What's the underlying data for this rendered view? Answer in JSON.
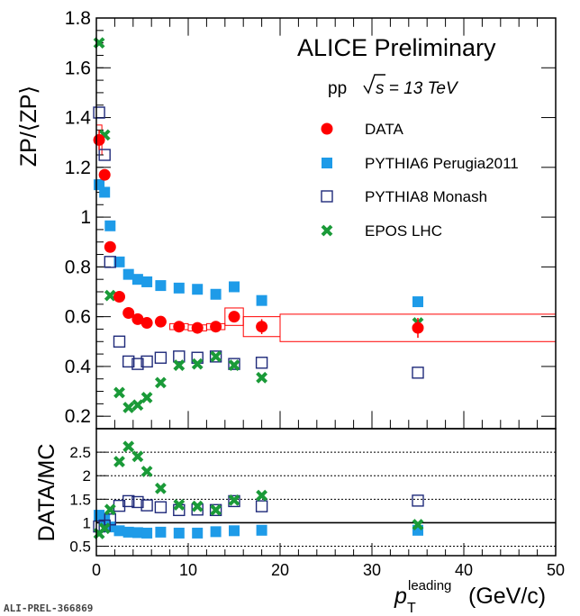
{
  "chart_data": [
    {
      "type": "scatter",
      "panel": "top",
      "title": "ALICE Preliminary",
      "subtitle_prefix": "pp ",
      "subtitle_energy": "s = 13 TeV",
      "ylabel": "ZP/⟨ZP⟩",
      "xlim": [
        0,
        50
      ],
      "ylim": [
        0.15,
        1.8
      ],
      "xticks": [
        "0",
        "10",
        "20",
        "30",
        "40",
        "50"
      ],
      "yticks": [
        "0.2",
        "0.4",
        "0.6",
        "0.8",
        "1",
        "1.2",
        "1.4",
        "1.6",
        "1.8"
      ],
      "legend_position": "top-right",
      "series": [
        {
          "name": "DATA",
          "marker": "circle",
          "color": "#ff0000",
          "x": [
            0.3,
            0.9,
            1.5,
            2.5,
            3.5,
            4.5,
            5.5,
            7,
            9,
            11,
            13,
            15,
            18,
            35
          ],
          "y": [
            1.31,
            1.17,
            0.88,
            0.68,
            0.615,
            0.59,
            0.575,
            0.58,
            0.56,
            0.555,
            0.56,
            0.6,
            0.56,
            0.555
          ],
          "yerr": [
            0.04,
            0.02,
            0.01,
            0.01,
            0.01,
            0.01,
            0.01,
            0.01,
            0.01,
            0.01,
            0.01,
            0.02,
            0.03,
            0.04
          ],
          "syst_width": [
            0.6,
            0.6,
            0.6,
            0.6,
            0.6,
            0.6,
            0.6,
            0.6,
            2,
            2,
            2,
            2,
            4,
            30
          ],
          "syst_half_height": [
            0.06,
            0.015,
            0.015,
            0.01,
            0.01,
            0.01,
            0.01,
            0.01,
            0.012,
            0.012,
            0.012,
            0.035,
            0.04,
            0.055
          ]
        },
        {
          "name": "PYTHIA6 Perugia2011",
          "marker": "square-filled",
          "color": "#1e9be8",
          "x": [
            0.3,
            0.9,
            1.5,
            2.5,
            3.5,
            4.5,
            5.5,
            7,
            9,
            11,
            13,
            15,
            18,
            35
          ],
          "y": [
            1.13,
            1.1,
            0.965,
            0.82,
            0.77,
            0.75,
            0.74,
            0.725,
            0.715,
            0.71,
            0.69,
            0.72,
            0.665,
            0.66
          ]
        },
        {
          "name": "PYTHIA8 Monash",
          "marker": "square-open",
          "color": "#1f2a7a",
          "x": [
            0.3,
            0.9,
            1.5,
            2.5,
            3.5,
            4.5,
            5.5,
            7,
            9,
            11,
            13,
            15,
            18,
            35
          ],
          "y": [
            1.42,
            1.25,
            0.82,
            0.5,
            0.42,
            0.41,
            0.42,
            0.435,
            0.44,
            0.435,
            0.44,
            0.41,
            0.415,
            0.375
          ]
        },
        {
          "name": "EPOS LHC",
          "marker": "x",
          "color": "#1a9a38",
          "x": [
            0.3,
            0.9,
            1.5,
            2.5,
            3.5,
            4.5,
            5.5,
            7,
            9,
            11,
            13,
            15,
            18,
            35
          ],
          "y": [
            1.7,
            1.33,
            0.685,
            0.295,
            0.235,
            0.245,
            0.275,
            0.335,
            0.405,
            0.41,
            0.44,
            0.405,
            0.355,
            0.575
          ]
        }
      ]
    },
    {
      "type": "scatter",
      "panel": "bottom",
      "ylabel": "DATA/MC",
      "xlabel_main": "p",
      "xlabel_sup": "leading",
      "xlabel_sub": "T",
      "xlabel_units": " (GeV/c)",
      "xlim": [
        0,
        50
      ],
      "ylim": [
        0.3,
        3.0
      ],
      "yticks": [
        "0.5",
        "1",
        "1.5",
        "2",
        "2.5"
      ],
      "dotted_lines": [
        0.5,
        1.5,
        2,
        2.5
      ],
      "reference_line": 1,
      "series": [
        {
          "name": "PYTHIA6 Perugia2011",
          "marker": "square-filled",
          "color": "#1e9be8",
          "x": [
            0.3,
            0.9,
            1.5,
            2.5,
            3.5,
            4.5,
            5.5,
            7,
            9,
            11,
            13,
            15,
            18,
            35
          ],
          "y": [
            1.16,
            1.06,
            0.91,
            0.83,
            0.8,
            0.79,
            0.78,
            0.8,
            0.78,
            0.78,
            0.81,
            0.83,
            0.84,
            0.84
          ]
        },
        {
          "name": "PYTHIA8 Monash",
          "marker": "square-open",
          "color": "#1f2a7a",
          "x": [
            0.3,
            0.9,
            1.5,
            2.5,
            3.5,
            4.5,
            5.5,
            7,
            9,
            11,
            13,
            15,
            18,
            35
          ],
          "y": [
            0.92,
            0.94,
            1.07,
            1.36,
            1.46,
            1.44,
            1.37,
            1.33,
            1.27,
            1.28,
            1.27,
            1.46,
            1.35,
            1.47
          ]
        },
        {
          "name": "EPOS LHC",
          "marker": "x",
          "color": "#1a9a38",
          "x": [
            0.3,
            0.9,
            1.5,
            2.5,
            3.5,
            4.5,
            5.5,
            7,
            9,
            11,
            13,
            15,
            18,
            35
          ],
          "y": [
            0.77,
            0.88,
            1.28,
            2.3,
            2.62,
            2.41,
            2.09,
            1.73,
            1.38,
            1.35,
            1.27,
            1.48,
            1.58,
            0.96
          ]
        }
      ]
    }
  ],
  "watermark": "ALI-PREL-366869",
  "colors": {
    "frame": "#000000",
    "data": "#ff0000",
    "pythia6": "#1e9be8",
    "pythia8": "#1f2a7a",
    "epos": "#1a9a38"
  }
}
